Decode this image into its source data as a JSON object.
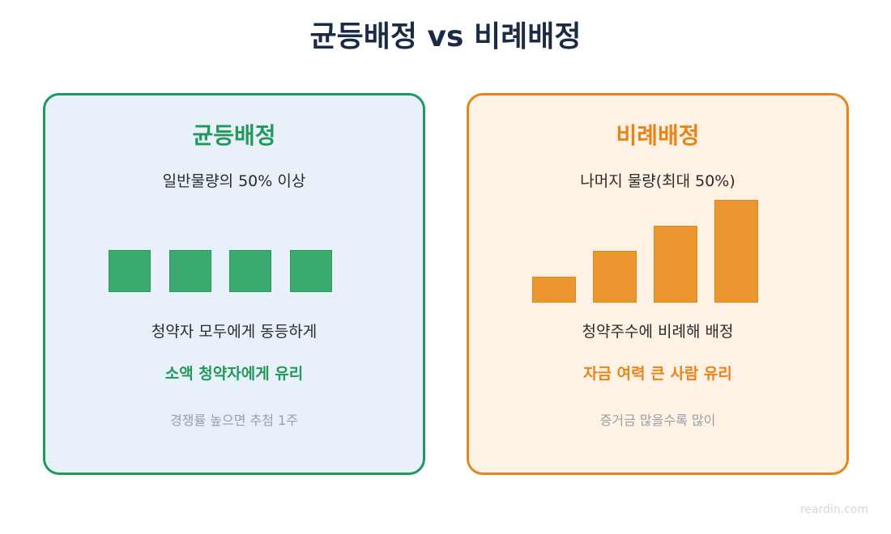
{
  "title": "균등배정 vs 비례배정",
  "left": {
    "heading": "균등배정",
    "subtitle": "일반물량의 50% 이상",
    "unit_count": 4,
    "description": "청약자 모두에게 동등하게",
    "highlight": "소액 청약자에게 유리",
    "note": "경쟁률 높으면 추첨 1주",
    "color": "#22995a"
  },
  "right": {
    "heading": "비례배정",
    "subtitle": "나머지 물량(최대 50%)",
    "bar_values": [
      1,
      2,
      3,
      4
    ],
    "description": "청약주수에 비례해 배정",
    "highlight": "자금 여력 큰 사람 유리",
    "note": "증거금 많을수록 많이",
    "color": "#e8841a"
  },
  "watermark": "reardin.com"
}
